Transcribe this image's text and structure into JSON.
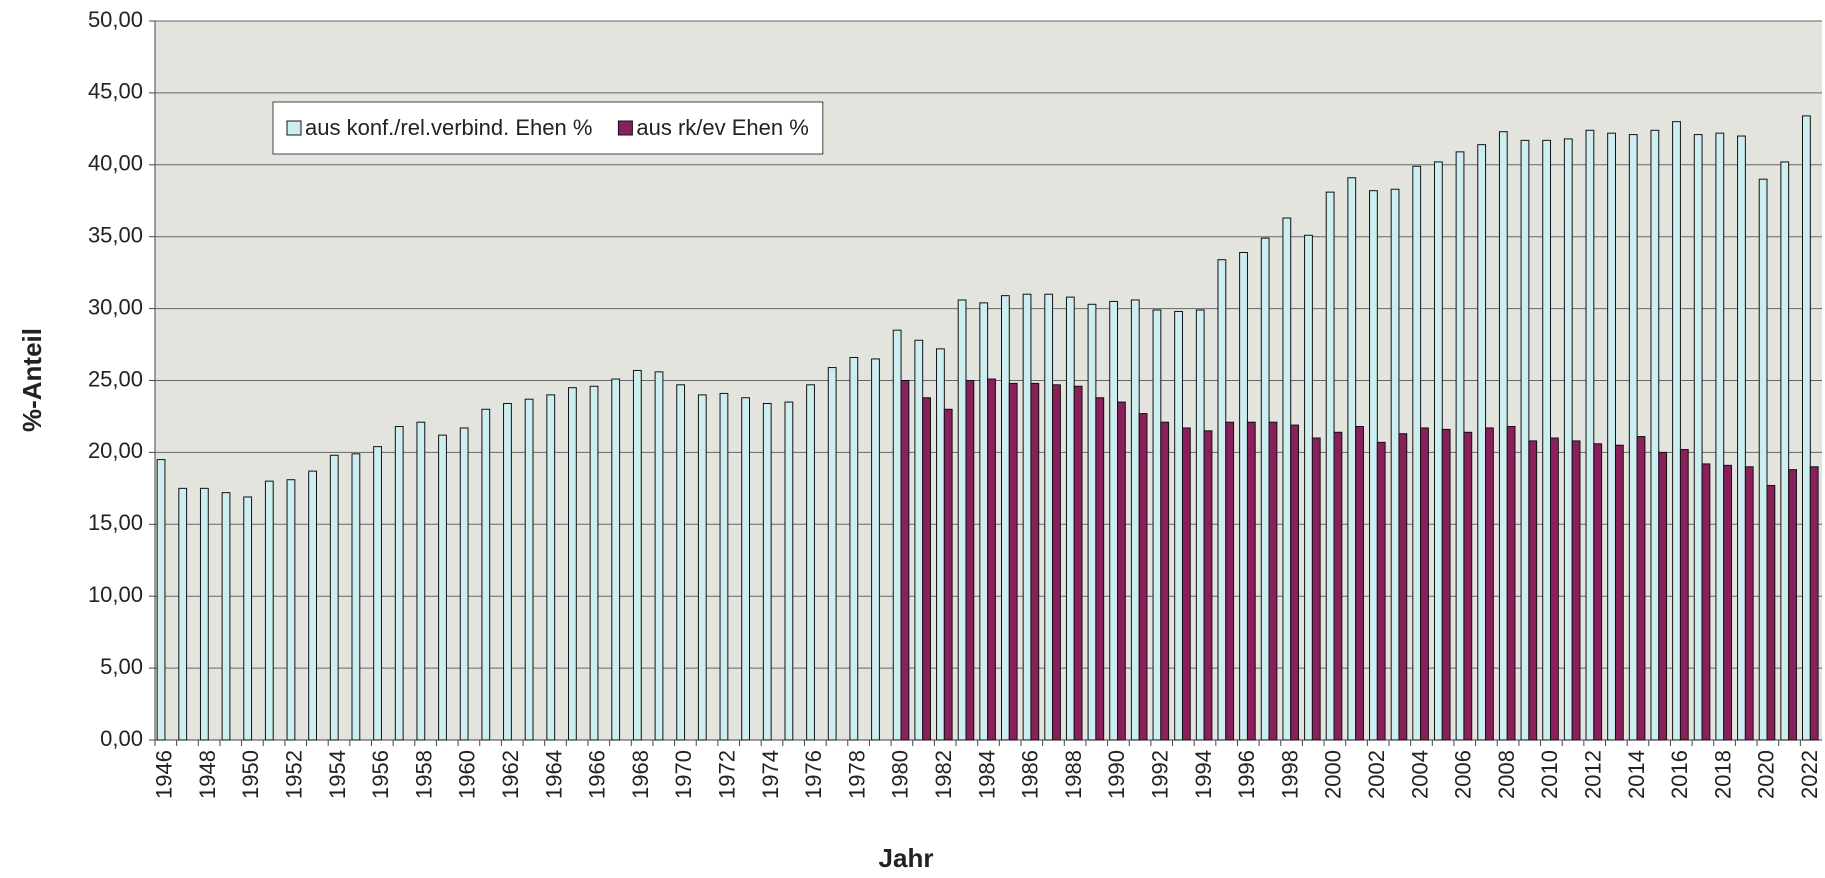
{
  "chart_data": {
    "type": "bar",
    "x_label": "Jahr",
    "y_label": "%-Anteil",
    "categories": [
      1946,
      null,
      1948,
      null,
      1950,
      null,
      1952,
      null,
      1954,
      null,
      1956,
      null,
      1958,
      null,
      1960,
      null,
      1962,
      null,
      1964,
      null,
      1966,
      null,
      1968,
      null,
      1970,
      null,
      1972,
      null,
      1974,
      null,
      1976,
      null,
      1978,
      null,
      1980,
      null,
      1982,
      null,
      1984,
      null,
      1986,
      null,
      1988,
      null,
      1990,
      null,
      1992,
      null,
      1994,
      null,
      1996,
      null,
      1998,
      null,
      2000,
      null,
      2002,
      null,
      2004,
      null,
      2006,
      null,
      2008,
      null,
      2010,
      null,
      2012,
      null,
      2014,
      null,
      2016,
      null,
      2018,
      null,
      2020,
      null,
      2022
    ],
    "series": [
      {
        "name": "aus konf./rel.verbind. Ehen %",
        "color": "#cdeef0",
        "values": [
          19.5,
          17.5,
          17.5,
          17.2,
          16.9,
          18.0,
          18.1,
          18.7,
          19.8,
          19.9,
          20.4,
          21.8,
          22.1,
          21.2,
          21.7,
          23.0,
          23.4,
          23.7,
          24.0,
          24.5,
          24.6,
          25.1,
          25.7,
          25.6,
          24.7,
          24.0,
          24.1,
          23.8,
          23.4,
          23.5,
          24.7,
          25.9,
          26.6,
          26.5,
          28.5,
          27.8,
          27.2,
          30.6,
          30.4,
          30.9,
          31.0,
          31.0,
          30.8,
          30.3,
          30.5,
          30.6,
          29.9,
          29.8,
          29.9,
          33.4,
          33.9,
          34.9,
          36.3,
          35.1,
          38.1,
          39.1,
          38.2,
          38.3,
          39.9,
          40.2,
          40.9,
          41.4,
          42.3,
          41.7,
          41.7,
          41.8,
          42.4,
          42.2,
          42.1,
          42.4,
          43.0,
          42.1,
          42.2,
          42.0,
          39.0,
          40.2,
          43.4
        ]
      },
      {
        "name": "aus rk/ev Ehen %",
        "color": "#8a1f5c",
        "values": [
          null,
          null,
          null,
          null,
          null,
          null,
          null,
          null,
          null,
          null,
          null,
          null,
          null,
          null,
          null,
          null,
          null,
          null,
          null,
          null,
          null,
          null,
          null,
          null,
          null,
          null,
          null,
          null,
          null,
          null,
          null,
          null,
          null,
          null,
          25.0,
          23.8,
          23.0,
          25.0,
          25.1,
          24.8,
          24.8,
          24.7,
          24.6,
          23.8,
          23.5,
          22.7,
          22.1,
          21.7,
          21.5,
          22.1,
          22.1,
          22.1,
          21.9,
          21.0,
          21.4,
          21.8,
          20.7,
          21.3,
          21.7,
          21.6,
          21.4,
          21.7,
          21.8,
          20.8,
          21.0,
          20.8,
          20.6,
          20.5,
          21.1,
          20.0,
          20.2,
          19.2,
          19.1,
          19.0,
          17.7,
          18.8,
          19.0
        ]
      }
    ],
    "ylim": [
      0,
      50
    ],
    "yticks": [
      {
        "value": 0,
        "label": "0,00"
      },
      {
        "value": 5,
        "label": "5,00"
      },
      {
        "value": 10,
        "label": "10,00"
      },
      {
        "value": 15,
        "label": "15,00"
      },
      {
        "value": 20,
        "label": "20,00"
      },
      {
        "value": 25,
        "label": "25,00"
      },
      {
        "value": 30,
        "label": "30,00"
      },
      {
        "value": 35,
        "label": "35,00"
      },
      {
        "value": 40,
        "label": "40,00"
      },
      {
        "value": 45,
        "label": "45,00"
      },
      {
        "value": 50,
        "label": "50,00"
      }
    ],
    "grid": true,
    "legend": "top-left"
  }
}
